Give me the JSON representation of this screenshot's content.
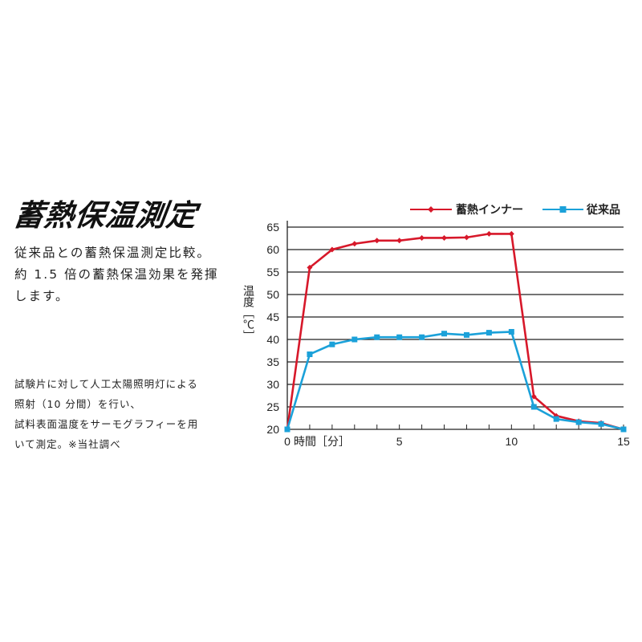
{
  "title": "蓄熱保温測定",
  "lead": [
    "従来品との蓄熱保温測定比較。",
    "約 1.5 倍の蓄熱保温効果を発揮",
    "します。"
  ],
  "note": [
    "試験片に対して人工太陽照明灯による",
    "照射（10 分間）を行い、",
    "試料表面温度をサーモグラフィーを用",
    "いて測定。※当社調べ"
  ],
  "chart_data": {
    "type": "line",
    "xlabel": "時間［分］",
    "ylabel": "温度［℃］",
    "x": [
      0,
      1,
      2,
      3,
      4,
      5,
      6,
      7,
      8,
      9,
      10,
      11,
      12,
      13,
      14,
      15
    ],
    "xticks": [
      0,
      5,
      10,
      15
    ],
    "xtick_labels": [
      "0",
      "5",
      "10",
      "15"
    ],
    "yticks": [
      20,
      25,
      30,
      35,
      40,
      45,
      50,
      55,
      60,
      65
    ],
    "ylim": [
      20,
      65
    ],
    "xlim": [
      0,
      15
    ],
    "grid": "horizontal",
    "legend": "top-right",
    "series": [
      {
        "name": "蓄熱インナー",
        "color": "#d7182a",
        "marker": "diamond",
        "values": [
          20,
          56,
          60,
          61.3,
          62,
          62,
          62.6,
          62.6,
          62.7,
          63.5,
          63.5,
          27.3,
          23,
          21.8,
          21.4,
          20
        ]
      },
      {
        "name": "従来品",
        "color": "#1ba1d9",
        "marker": "square",
        "values": [
          20,
          36.7,
          38.9,
          40,
          40.5,
          40.5,
          40.5,
          41.3,
          41,
          41.5,
          41.7,
          25,
          22.3,
          21.6,
          21.2,
          20
        ]
      }
    ]
  }
}
